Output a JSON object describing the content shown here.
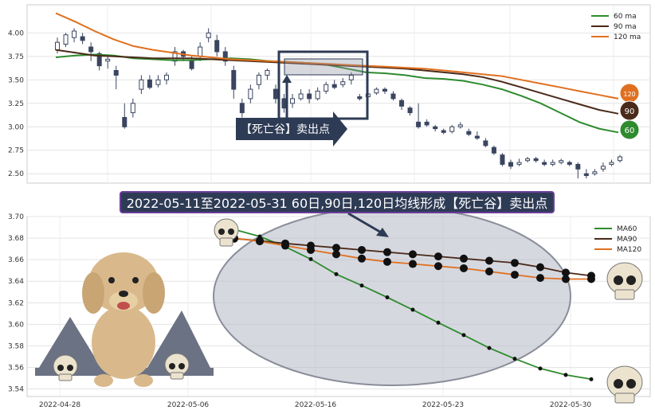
{
  "banner": "2022-05-11至2022-05-31 60日,90日,120日均线形成【死亡谷】卖出点",
  "sell_label": "【死亡谷】卖出点",
  "colors": {
    "ma60": "#2e8b2e",
    "ma90": "#4a2a1a",
    "ma120": "#e07020",
    "candle": "#3a4560",
    "banner_bg": "#2e3b55",
    "banner_border": "#6a3d9a"
  },
  "chart_data": [
    {
      "type": "candlestick",
      "yticks": [
        "4.00",
        "3.75",
        "3.50",
        "3.25",
        "3.00",
        "2.75",
        "2.50"
      ],
      "ylim": [
        2.4,
        4.3
      ],
      "grid": true,
      "legend_position": "top-right",
      "series": [
        {
          "name": "60 ma",
          "color": "#2e8b2e",
          "values": [
            3.74,
            3.76,
            3.77,
            3.76,
            3.73,
            3.72,
            3.71,
            3.71,
            3.72,
            3.73,
            3.72,
            3.7,
            3.69,
            3.68,
            3.66,
            3.62,
            3.58,
            3.57,
            3.55,
            3.52,
            3.51,
            3.49,
            3.45,
            3.4,
            3.33,
            3.25,
            3.15,
            3.05,
            2.98,
            2.94
          ]
        },
        {
          "name": "90 ma",
          "color": "#4a2a1a",
          "values": [
            3.82,
            3.79,
            3.76,
            3.75,
            3.74,
            3.73,
            3.73,
            3.73,
            3.72,
            3.71,
            3.7,
            3.69,
            3.68,
            3.67,
            3.66,
            3.65,
            3.64,
            3.63,
            3.62,
            3.6,
            3.58,
            3.56,
            3.53,
            3.48,
            3.42,
            3.36,
            3.3,
            3.24,
            3.18,
            3.14
          ]
        },
        {
          "name": "120 ma",
          "color": "#e07020",
          "values": [
            4.21,
            4.12,
            4.02,
            3.93,
            3.86,
            3.82,
            3.79,
            3.76,
            3.74,
            3.72,
            3.71,
            3.7,
            3.69,
            3.68,
            3.67,
            3.66,
            3.65,
            3.64,
            3.63,
            3.62,
            3.6,
            3.58,
            3.56,
            3.54,
            3.5,
            3.46,
            3.42,
            3.38,
            3.34,
            3.3
          ]
        }
      ],
      "end_badges": [
        "120",
        "90",
        "60"
      ],
      "candles": [
        [
          3.82,
          3.9,
          3.95,
          3.78
        ],
        [
          3.88,
          3.98,
          4.0,
          3.85
        ],
        [
          3.95,
          4.02,
          4.05,
          3.9
        ],
        [
          3.96,
          3.92,
          4.0,
          3.88
        ],
        [
          3.85,
          3.8,
          3.9,
          3.7
        ],
        [
          3.78,
          3.65,
          3.8,
          3.6
        ],
        [
          3.7,
          3.72,
          3.76,
          3.62
        ],
        [
          3.6,
          3.55,
          3.65,
          3.4
        ],
        [
          3.1,
          3.0,
          3.25,
          2.98
        ],
        [
          3.15,
          3.25,
          3.3,
          3.1
        ],
        [
          3.4,
          3.5,
          3.55,
          3.35
        ],
        [
          3.5,
          3.42,
          3.55,
          3.4
        ],
        [
          3.45,
          3.5,
          3.55,
          3.42
        ],
        [
          3.5,
          3.55,
          3.58,
          3.45
        ],
        [
          3.7,
          3.8,
          3.85,
          3.65
        ],
        [
          3.8,
          3.75,
          3.82,
          3.7
        ],
        [
          3.7,
          3.62,
          3.75,
          3.6
        ],
        [
          3.75,
          3.85,
          3.9,
          3.7
        ],
        [
          3.95,
          4.0,
          4.05,
          3.9
        ],
        [
          3.92,
          3.8,
          3.98,
          3.75
        ],
        [
          3.8,
          3.7,
          3.85,
          3.65
        ],
        [
          3.6,
          3.4,
          3.65,
          3.3
        ],
        [
          3.25,
          3.15,
          3.3,
          3.1
        ],
        [
          3.3,
          3.4,
          3.45,
          3.25
        ],
        [
          3.45,
          3.55,
          3.58,
          3.4
        ],
        [
          3.55,
          3.6,
          3.62,
          3.5
        ],
        [
          3.4,
          3.3,
          3.45,
          3.25
        ],
        [
          3.3,
          3.2,
          3.35,
          3.15
        ],
        [
          3.25,
          3.3,
          3.35,
          3.2
        ],
        [
          3.3,
          3.35,
          3.4,
          3.28
        ],
        [
          3.35,
          3.3,
          3.4,
          3.25
        ],
        [
          3.3,
          3.38,
          3.42,
          3.28
        ],
        [
          3.38,
          3.45,
          3.48,
          3.35
        ],
        [
          3.45,
          3.42,
          3.5,
          3.4
        ],
        [
          3.45,
          3.48,
          3.52,
          3.42
        ],
        [
          3.5,
          3.55,
          3.58,
          3.45
        ],
        [
          3.32,
          3.3,
          3.35,
          3.28
        ],
        [
          3.32,
          3.35,
          3.38,
          3.3
        ],
        [
          3.36,
          3.4,
          3.42,
          3.34
        ],
        [
          3.4,
          3.38,
          3.42,
          3.35
        ],
        [
          3.35,
          3.3,
          3.38,
          3.28
        ],
        [
          3.28,
          3.22,
          3.3,
          3.18
        ],
        [
          3.2,
          3.15,
          3.22,
          3.12
        ],
        [
          3.05,
          3.0,
          3.25,
          2.98
        ],
        [
          3.05,
          3.02,
          3.08,
          3.0
        ],
        [
          3.0,
          2.98,
          3.02,
          2.95
        ],
        [
          2.96,
          2.94,
          2.98,
          2.92
        ],
        [
          2.95,
          3.0,
          3.02,
          2.93
        ],
        [
          3.0,
          3.02,
          3.05,
          2.98
        ],
        [
          2.95,
          2.92,
          2.98,
          2.9
        ],
        [
          2.9,
          2.88,
          2.95,
          2.86
        ],
        [
          2.85,
          2.8,
          2.88,
          2.78
        ],
        [
          2.78,
          2.72,
          2.8,
          2.7
        ],
        [
          2.7,
          2.6,
          2.72,
          2.58
        ],
        [
          2.62,
          2.58,
          2.65,
          2.55
        ],
        [
          2.6,
          2.62,
          2.66,
          2.58
        ],
        [
          2.64,
          2.66,
          2.68,
          2.62
        ],
        [
          2.66,
          2.64,
          2.68,
          2.62
        ],
        [
          2.62,
          2.6,
          2.65,
          2.58
        ],
        [
          2.6,
          2.62,
          2.65,
          2.58
        ],
        [
          2.62,
          2.64,
          2.66,
          2.6
        ],
        [
          2.62,
          2.6,
          2.64,
          2.58
        ],
        [
          2.6,
          2.55,
          2.62,
          2.45
        ],
        [
          2.5,
          2.48,
          2.55,
          2.45
        ],
        [
          2.5,
          2.52,
          2.55,
          2.48
        ],
        [
          2.55,
          2.58,
          2.62,
          2.52
        ],
        [
          2.6,
          2.62,
          2.65,
          2.58
        ],
        [
          2.64,
          2.68,
          2.7,
          2.62
        ]
      ]
    },
    {
      "type": "line",
      "x": [
        "2022-05-11",
        "2022-05-12",
        "2022-05-13",
        "2022-05-16",
        "2022-05-17",
        "2022-05-18",
        "2022-05-19",
        "2022-05-20",
        "2022-05-23",
        "2022-05-24",
        "2022-05-25",
        "2022-05-26",
        "2022-05-27",
        "2022-05-30",
        "2022-05-31"
      ],
      "xticks": [
        "2022-04-28",
        "2022-05-06",
        "2022-05-16",
        "2022-05-23",
        "2022-05-30"
      ],
      "yticks": [
        "3.70",
        "3.68",
        "3.66",
        "3.64",
        "3.62",
        "3.60",
        "3.58",
        "3.56",
        "3.54"
      ],
      "ylim": [
        3.533,
        3.7
      ],
      "grid": true,
      "legend_position": "top-right",
      "series": [
        {
          "name": "MA60",
          "color": "#2e8b2e",
          "values": [
            3.688,
            3.6815,
            3.672,
            3.6605,
            3.6465,
            3.636,
            3.625,
            3.6135,
            3.6015,
            3.59,
            3.578,
            3.568,
            3.559,
            3.553,
            3.549
          ]
        },
        {
          "name": "MA90",
          "color": "#4a2a1a",
          "values": [
            3.6795,
            3.6775,
            3.675,
            3.673,
            3.671,
            3.669,
            3.667,
            3.665,
            3.663,
            3.661,
            3.659,
            3.657,
            3.653,
            3.648,
            3.645
          ]
        },
        {
          "name": "MA120",
          "color": "#e07020",
          "values": [
            3.68,
            3.677,
            3.673,
            3.669,
            3.665,
            3.661,
            3.658,
            3.656,
            3.654,
            3.652,
            3.649,
            3.646,
            3.643,
            3.642,
            3.642
          ]
        }
      ]
    }
  ]
}
